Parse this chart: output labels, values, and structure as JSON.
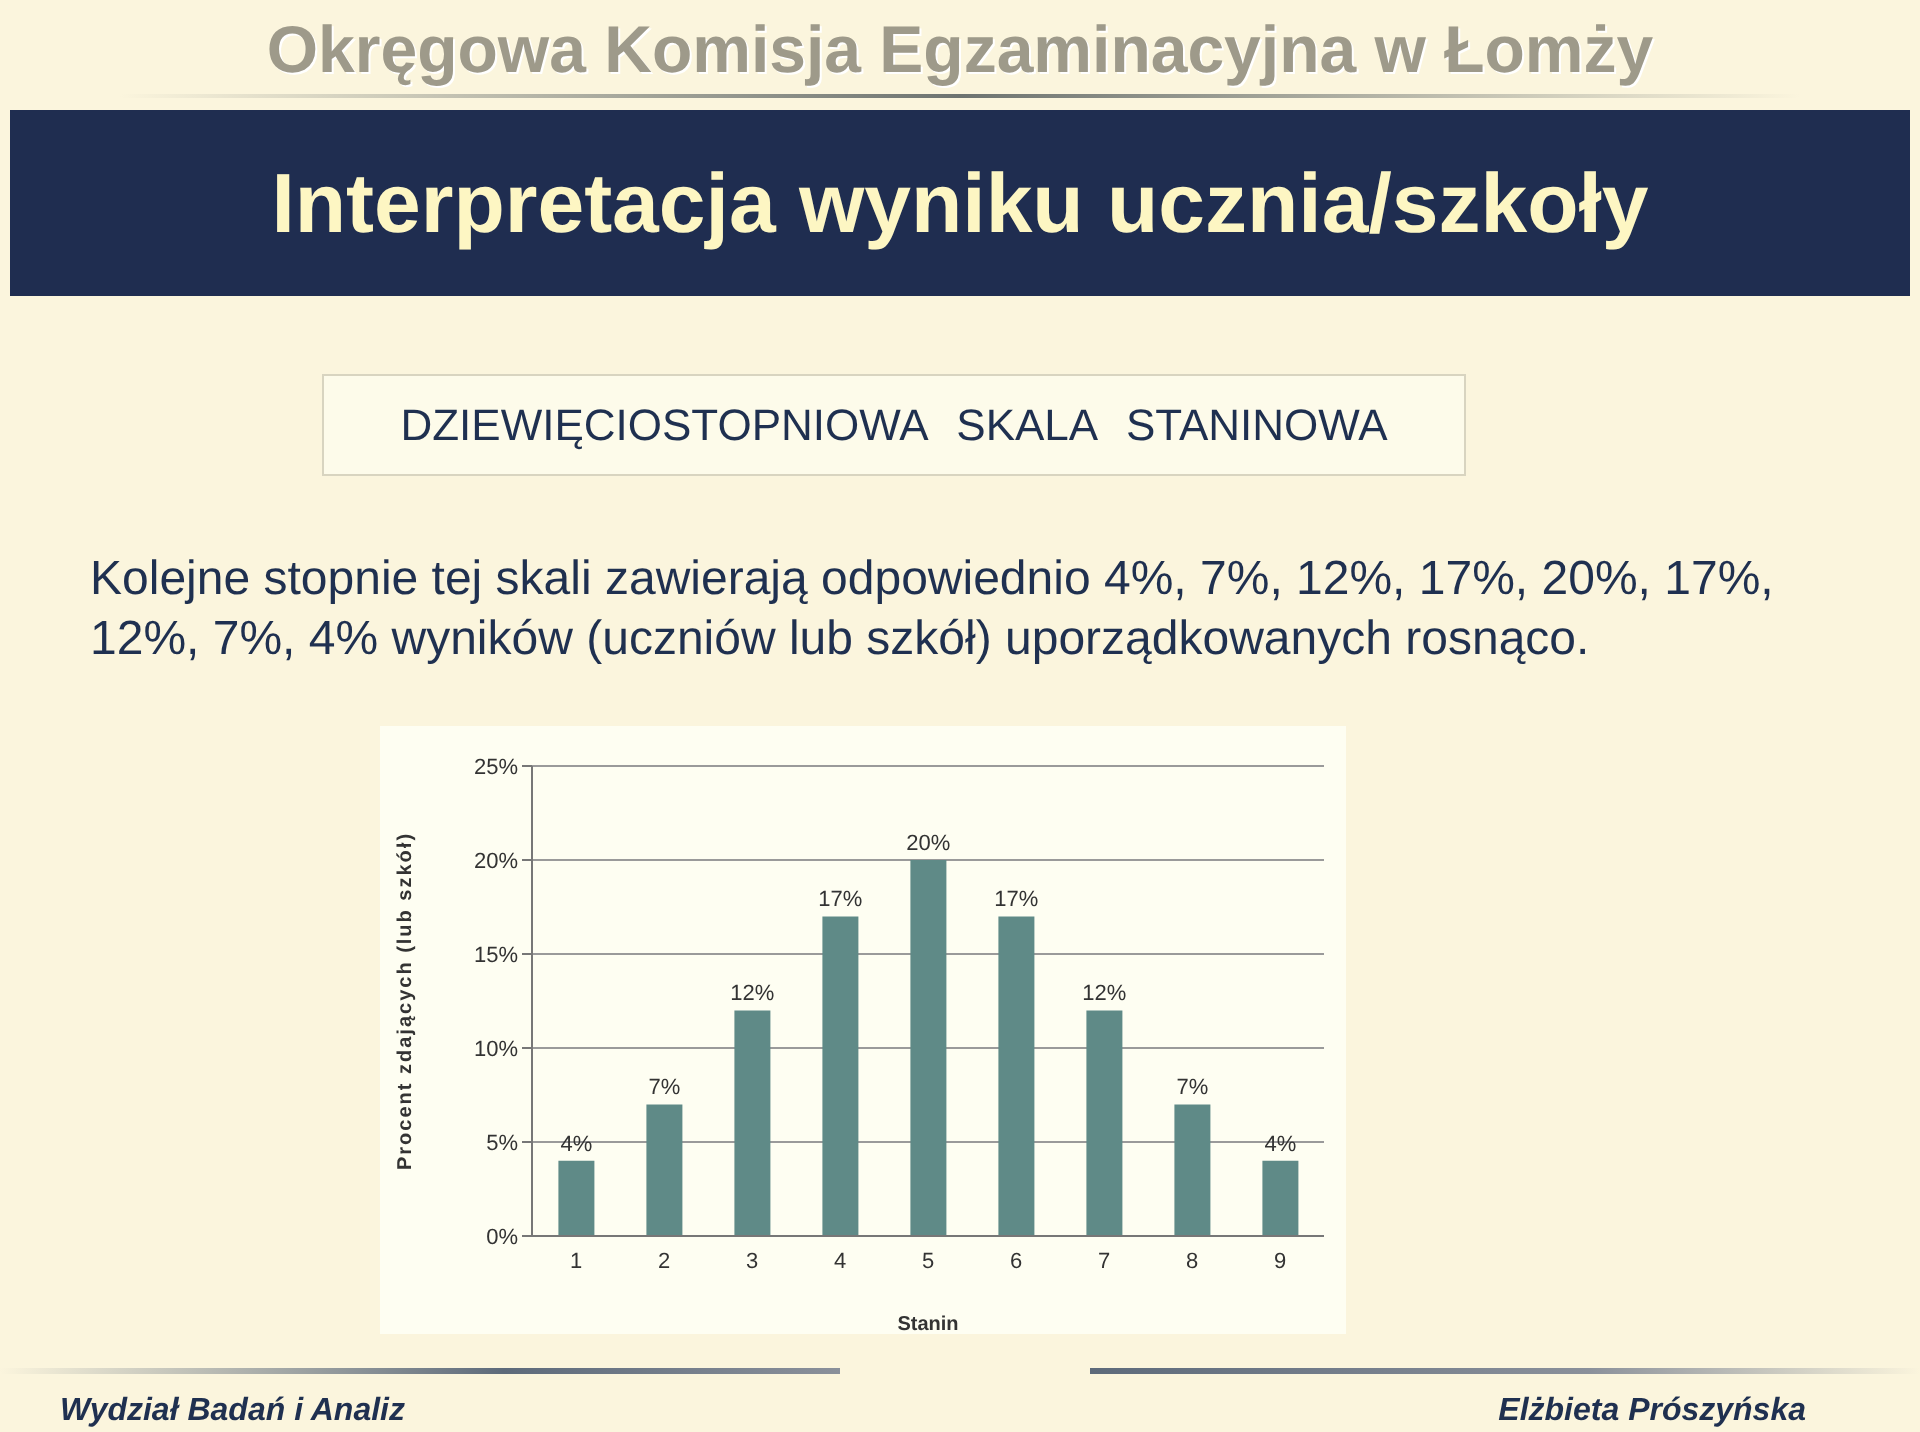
{
  "chart_data": {
    "type": "bar",
    "title": "Interpretacja wyniku ucznia/szkoły",
    "subtitle": "DZIEWIĘCIOSTOPNIOWA SKALA STANINOWA",
    "annotations": [
      "Okręgowa Komisja Egzaminacyjna w Łomży",
      "Kolejne stopnie tej skali zawierają odpowiednio 4%, 7%, 12%, 17%, 20%, 17%, 12%, 7%, 4% wyników (uczniów lub szkół) uporządkowanych rosnąco.",
      "Wydział Badań i Analiz",
      "Elżbieta Prószyńska"
    ],
    "xlabel": "Stanin",
    "ylabel": "Procent zdających (lub szkół)",
    "categories": [
      "1",
      "2",
      "3",
      "4",
      "5",
      "6",
      "7",
      "8",
      "9"
    ],
    "values": [
      4,
      7,
      12,
      17,
      20,
      17,
      12,
      7,
      4
    ],
    "value_labels": [
      "4%",
      "7%",
      "12%",
      "17%",
      "20%",
      "17%",
      "12%",
      "7%",
      "4%"
    ],
    "color": "#5f8a87",
    "ylim": [
      0,
      25
    ],
    "yticks": [
      {
        "value": 0,
        "label": "0%"
      },
      {
        "value": 5,
        "label": "5%"
      },
      {
        "value": 10,
        "label": "10%"
      },
      {
        "value": 15,
        "label": "15%"
      },
      {
        "value": 20,
        "label": "20%"
      },
      {
        "value": 25,
        "label": "25%"
      }
    ],
    "grid": "y"
  }
}
